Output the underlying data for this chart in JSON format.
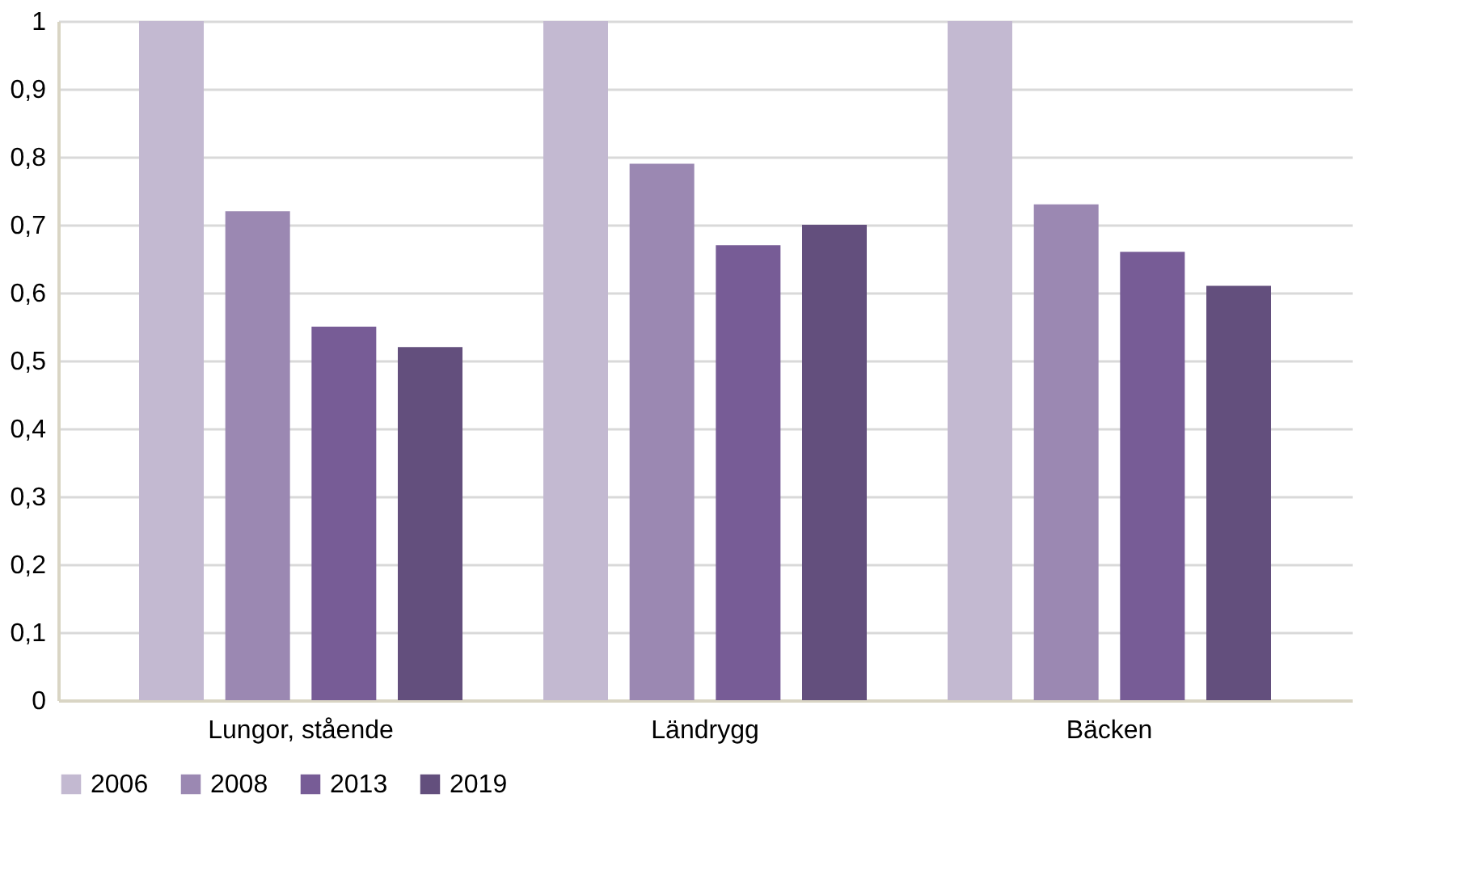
{
  "chart_data": {
    "type": "bar",
    "categories": [
      "Lungor, stående",
      "Ländrygg",
      "Bäcken"
    ],
    "series": [
      {
        "name": "2006",
        "color": "#c3b9d1",
        "values": [
          1,
          1,
          1
        ]
      },
      {
        "name": "2008",
        "color": "#9b88b2",
        "values": [
          0.72,
          0.79,
          0.73
        ]
      },
      {
        "name": "2013",
        "color": "#775c96",
        "values": [
          0.55,
          0.67,
          0.66
        ]
      },
      {
        "name": "2019",
        "color": "#634f7d",
        "values": [
          0.52,
          0.7,
          0.61
        ]
      }
    ],
    "ylim": [
      0,
      1
    ],
    "yticks": [
      0,
      {
        "value": 0.1,
        "label": "0,1"
      },
      {
        "value": 0.2,
        "label": "0,2"
      },
      {
        "value": 0.3,
        "label": "0,3"
      },
      {
        "value": 0.4,
        "label": "0,4"
      },
      {
        "value": 0.5,
        "label": "0,5"
      },
      {
        "value": 0.6,
        "label": "0,6"
      },
      {
        "value": 0.7,
        "label": "0,7"
      },
      {
        "value": 0.8,
        "label": "0,8"
      },
      {
        "value": 0.9,
        "label": "0,9"
      },
      1
    ],
    "grid": "y",
    "legend": "bottom"
  }
}
